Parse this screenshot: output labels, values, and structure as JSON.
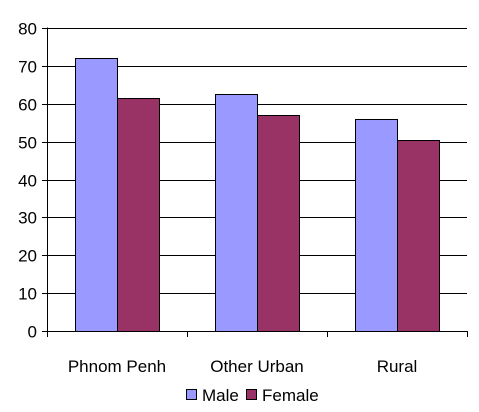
{
  "chart_data": {
    "type": "bar",
    "categories": [
      "Phnom Penh",
      "Other Urban",
      "Rural"
    ],
    "series": [
      {
        "name": "Male",
        "values": [
          72,
          62.5,
          56
        ],
        "color": "#9999ff"
      },
      {
        "name": "Female",
        "values": [
          61.5,
          57,
          50.3
        ],
        "color": "#993366"
      }
    ],
    "title": "",
    "xlabel": "",
    "ylabel": "",
    "ylim": [
      0,
      80
    ],
    "yticks": [
      0,
      10,
      20,
      30,
      40,
      50,
      60,
      70,
      80
    ],
    "grid": true,
    "legend": "bottom"
  }
}
